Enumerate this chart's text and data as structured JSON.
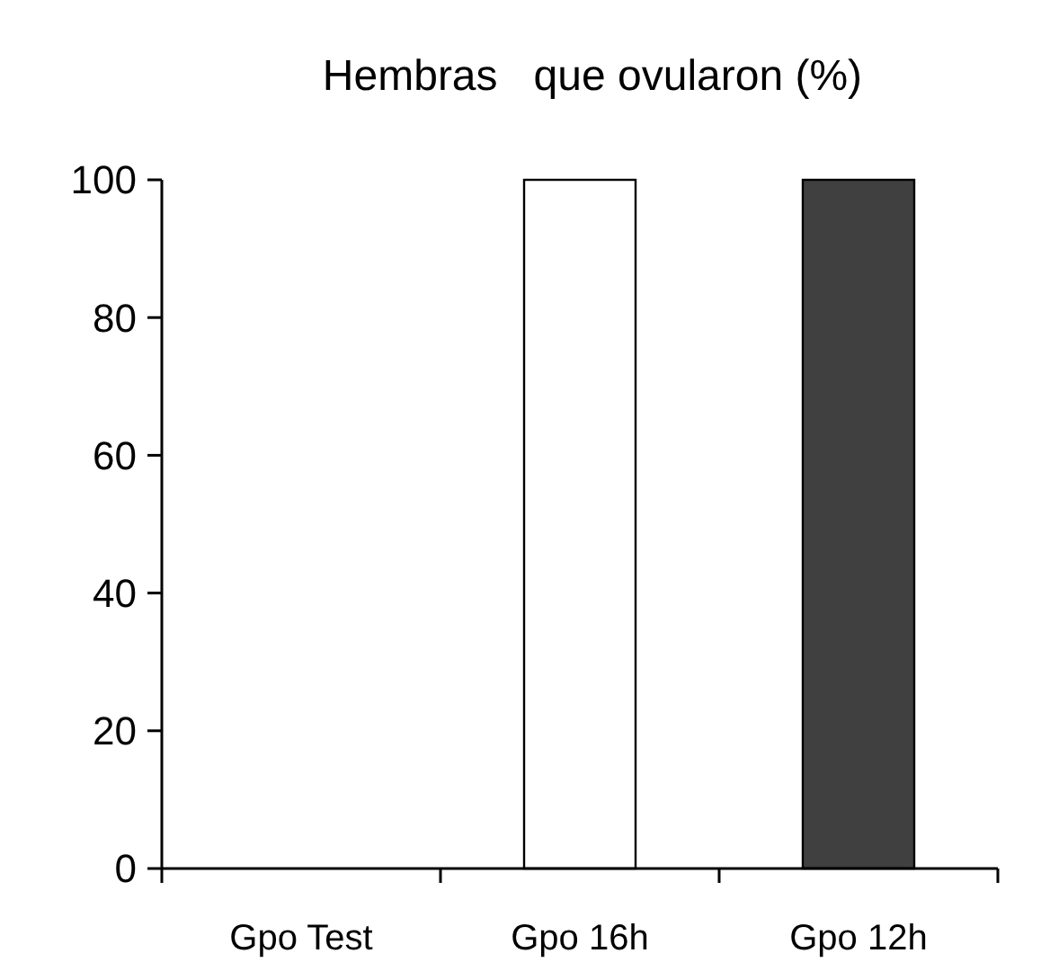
{
  "chart_data": {
    "type": "bar",
    "title": "Hembras   que ovularon (%)",
    "categories": [
      "Gpo Test",
      "Gpo 16h",
      "Gpo 12h"
    ],
    "values": [
      0,
      100,
      100
    ],
    "colors": [
      "#ffffff",
      "#ffffff",
      "#404040"
    ],
    "ylim": [
      0,
      100
    ],
    "yticks": [
      0,
      20,
      40,
      60,
      80,
      100
    ],
    "grid": false
  }
}
